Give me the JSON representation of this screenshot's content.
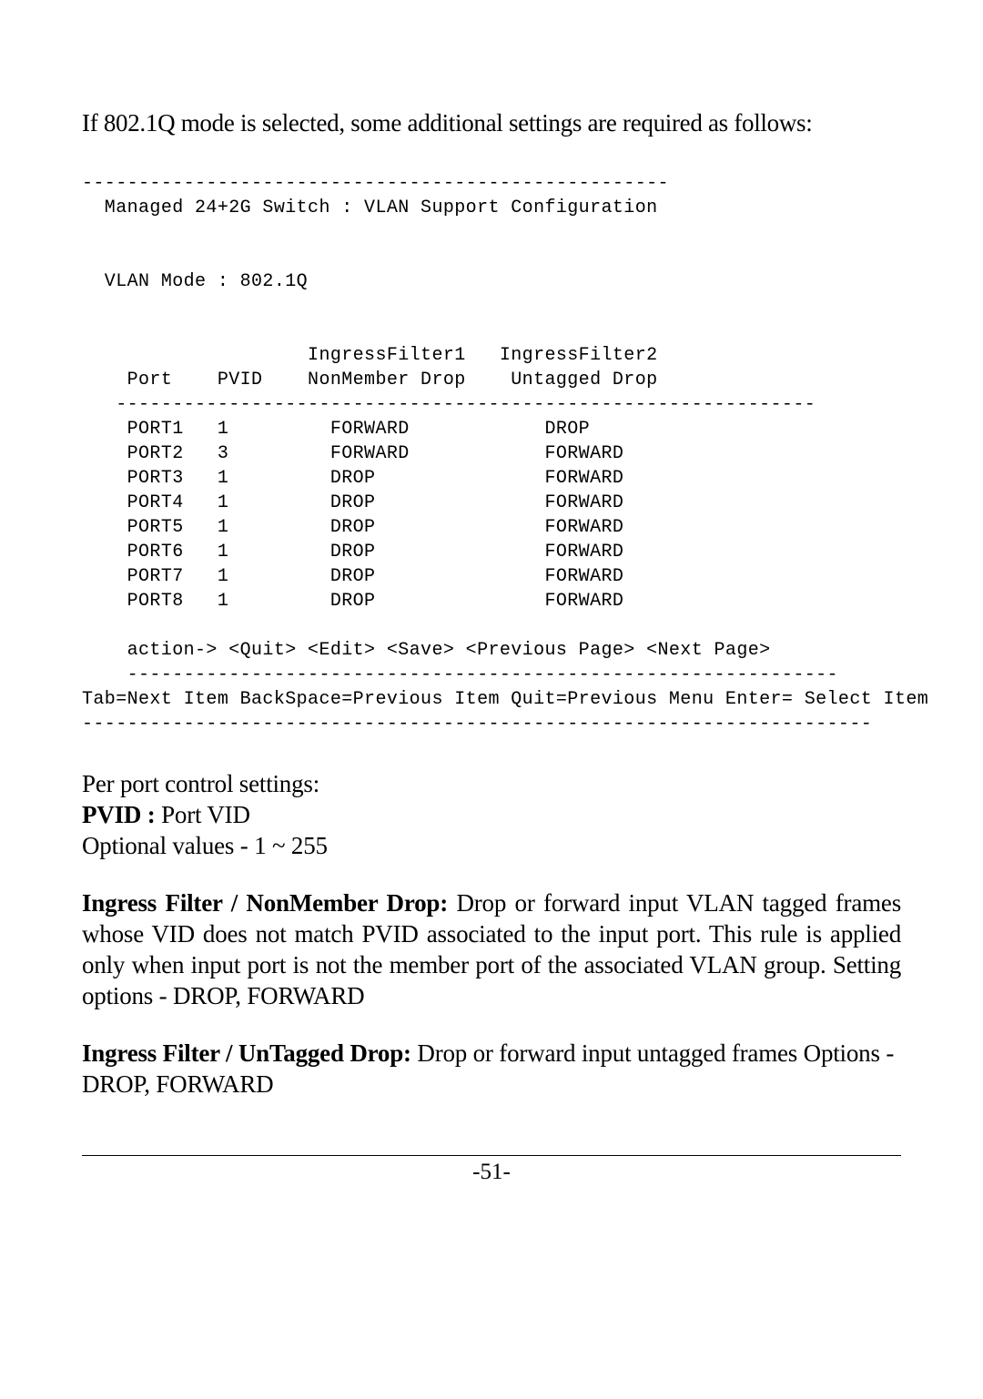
{
  "intro": "If 802.1Q mode is selected, some additional settings are required as follows:",
  "term": {
    "rule_top": "----------------------------------------------------",
    "title": "  Managed 24+2G Switch : VLAN Support Configuration",
    "vlan_mode": "  VLAN Mode : 802.1Q",
    "hdr1": "                    IngressFilter1   IngressFilter2",
    "hdr2": "    Port    PVID    NonMember Drop    Untagged Drop",
    "hdr_rule": "   --------------------------------------------------------------",
    "rows": [
      "    PORT1   1         FORWARD            DROP",
      "    PORT2   3         FORWARD            FORWARD",
      "    PORT3   1         DROP               FORWARD",
      "    PORT4   1         DROP               FORWARD",
      "    PORT5   1         DROP               FORWARD",
      "    PORT6   1         DROP               FORWARD",
      "    PORT7   1         DROP               FORWARD",
      "    PORT8   1         DROP               FORWARD"
    ],
    "action": "    action-> <Quit> <Edit> <Save> <Previous Page> <Next Page>",
    "action_rule": "    ---------------------------------------------------------------",
    "help": "Tab=Next Item BackSpace=Previous Item Quit=Previous Menu Enter= Select Item",
    "rule_bottom": "----------------------------------------------------------------------"
  },
  "section": {
    "perport": "Per port control settings:",
    "pvid_label": "PVID :",
    "pvid_text": " Port VID",
    "pvid_opt": "Optional values - 1 ~ 255",
    "if1_label": "Ingress Filter / NonMember Drop:",
    "if1_text": " Drop or forward input VLAN tagged frames whose VID does not match PVID associated to the input port. This rule is applied only when input port is not the member port of the associated VLAN group. Setting options - DROP, FORWARD",
    "if2_label": "Ingress Filter / UnTagged Drop:",
    "if2_text": " Drop or forward input untagged frames Options - DROP, FORWARD"
  },
  "page_number": "-51-"
}
